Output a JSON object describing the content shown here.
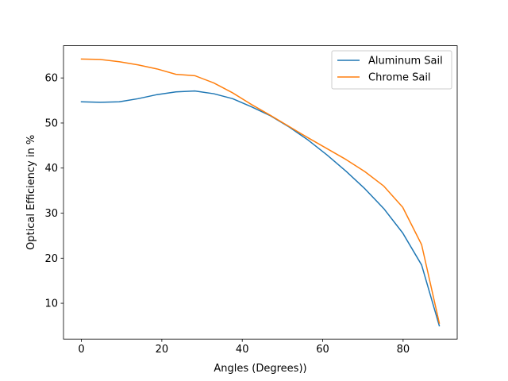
{
  "chart_data": {
    "type": "line",
    "title": "",
    "xlabel": "Angles (Degrees))",
    "ylabel": "Optical Efficiency in %",
    "xlim": [
      -4.45,
      93.45
    ],
    "ylim": [
      2.05,
      67.15
    ],
    "xticks": [
      0,
      20,
      40,
      60,
      80
    ],
    "yticks": [
      10,
      20,
      30,
      40,
      50,
      60
    ],
    "grid": false,
    "legend_position": "top-right",
    "x": [
      0,
      4.7,
      9.4,
      14.1,
      18.8,
      23.5,
      28.2,
      32.9,
      37.6,
      42.3,
      47,
      51.7,
      56.4,
      61.1,
      65.8,
      70.5,
      75.2,
      79.9,
      84.6,
      89
    ],
    "series": [
      {
        "name": "Aluminum Sail",
        "color": "#1f77b4",
        "values": [
          54.7,
          54.6,
          54.7,
          55.4,
          56.3,
          56.9,
          57.1,
          56.5,
          55.4,
          53.6,
          51.6,
          49.1,
          46.2,
          42.9,
          39.3,
          35.4,
          31.0,
          25.6,
          18.5,
          5.0
        ]
      },
      {
        "name": "Chrome Sail",
        "color": "#ff7f0e",
        "values": [
          64.2,
          64.1,
          63.6,
          62.9,
          62.0,
          60.8,
          60.5,
          58.9,
          56.7,
          54.1,
          51.7,
          49.2,
          46.7,
          44.3,
          41.9,
          39.2,
          36.0,
          31.3,
          23.0,
          5.6
        ]
      }
    ]
  }
}
